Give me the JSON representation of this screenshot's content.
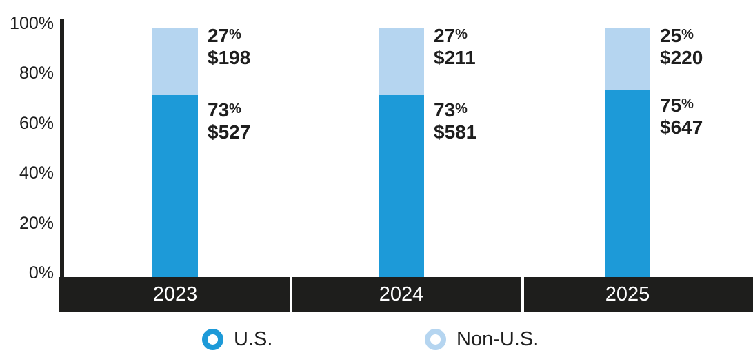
{
  "chart_data": {
    "type": "bar",
    "stacked": true,
    "title": "",
    "categories": [
      "2023",
      "2024",
      "2025"
    ],
    "series": [
      {
        "name": "U.S.",
        "values_pct": [
          73,
          73,
          75
        ],
        "values_usd": [
          527,
          581,
          647
        ],
        "color": "#1D9AD8"
      },
      {
        "name": "Non-U.S.",
        "values_pct": [
          27,
          27,
          25
        ],
        "values_usd": [
          198,
          211,
          220
        ],
        "color": "#B5D5F0"
      }
    ],
    "bar_labels": [
      {
        "category": "2023",
        "top": {
          "pct": "27",
          "pct_sign": "%",
          "amount": "$198"
        },
        "bottom": {
          "pct": "73",
          "pct_sign": "%",
          "amount": "$527"
        }
      },
      {
        "category": "2024",
        "top": {
          "pct": "27",
          "pct_sign": "%",
          "amount": "$211"
        },
        "bottom": {
          "pct": "73",
          "pct_sign": "%",
          "amount": "$581"
        }
      },
      {
        "category": "2025",
        "top": {
          "pct": "25",
          "pct_sign": "%",
          "amount": "$220"
        },
        "bottom": {
          "pct": "75",
          "pct_sign": "%",
          "amount": "$647"
        }
      }
    ],
    "y_ticks": [
      "0%",
      "20%",
      "40%",
      "60%",
      "80%",
      "100%"
    ],
    "ylim": [
      0,
      100
    ],
    "grid": false,
    "legend": {
      "position": "bottom",
      "items": [
        {
          "label": "U.S."
        },
        {
          "label": "Non-U.S."
        }
      ]
    }
  },
  "colors": {
    "us_blue": "#1D9AD8",
    "non_us_blue": "#B5D5F0",
    "band_black": "#1E1E1C",
    "axis_black": "#1E1E1C",
    "divider_white": "#FFFFFF",
    "year_text_white": "#FFFFFF",
    "label_text": "#1E1E1E"
  }
}
